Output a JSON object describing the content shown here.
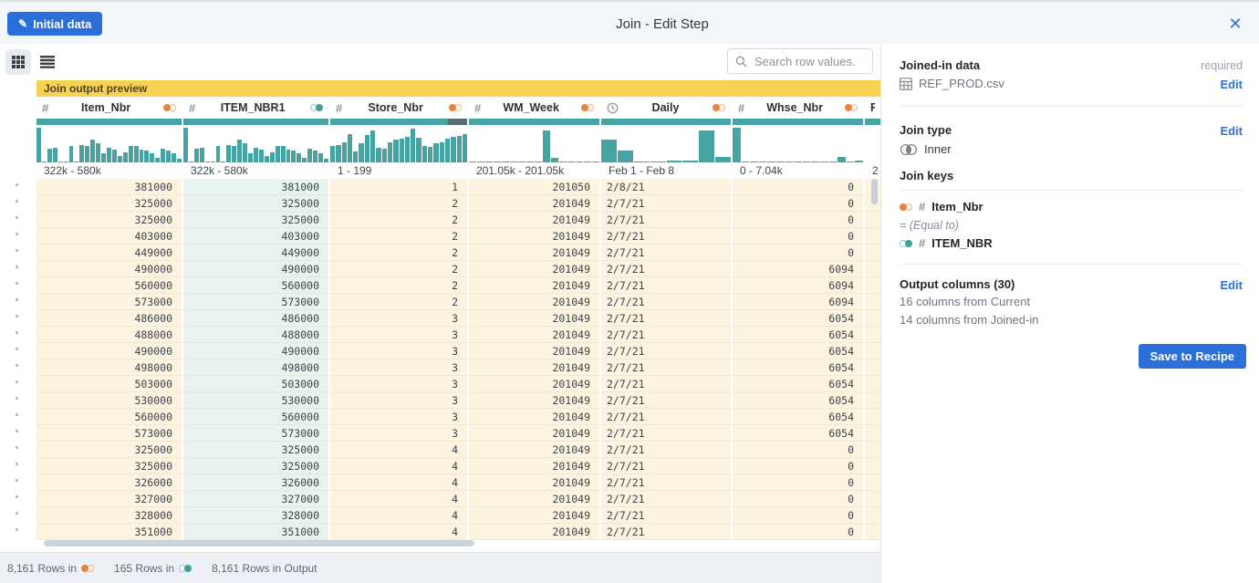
{
  "colors": {
    "accent_blue": "#2b6fdb",
    "teal": "#46a5a2",
    "orange": "#e8823c",
    "yellow_banner": "#f6d152",
    "quality_missing_gray": "#5d6b77"
  },
  "header": {
    "initial_data_button": "Initial data",
    "title": "Join - Edit Step",
    "icons": {
      "pencil": "✎",
      "close": "✕"
    }
  },
  "toolbar": {
    "search_placeholder": "Search row values."
  },
  "preview": {
    "banner_label": "Join output preview",
    "columns": [
      {
        "name": "Item_Nbr",
        "type": "numeric",
        "key_side": "current",
        "range": "322k - 580k",
        "quality": [
          {
            "color": "teal",
            "pct": 100
          }
        ],
        "hist": [
          95,
          3,
          38,
          40,
          2,
          2,
          44,
          2,
          48,
          46,
          62,
          52,
          26,
          40,
          36,
          18,
          28,
          46,
          44,
          36,
          33,
          24,
          13,
          38,
          33,
          26,
          10
        ]
      },
      {
        "name": "ITEM_NBR1",
        "type": "numeric",
        "key_side": "joined",
        "range": "322k - 580k",
        "quality": [
          {
            "color": "teal",
            "pct": 100
          }
        ],
        "hist": [
          95,
          3,
          38,
          40,
          2,
          2,
          44,
          2,
          48,
          46,
          62,
          52,
          26,
          40,
          36,
          18,
          28,
          46,
          44,
          36,
          33,
          24,
          13,
          38,
          33,
          26,
          10
        ]
      },
      {
        "name": "Store_Nbr",
        "type": "numeric",
        "key_side": "current",
        "range": "1 - 199",
        "quality": [
          {
            "color": "teal",
            "pct": 86
          },
          {
            "color": "gray",
            "pct": 14
          }
        ],
        "hist": [
          45,
          48,
          55,
          78,
          30,
          52,
          75,
          88,
          40,
          38,
          55,
          62,
          65,
          70,
          92,
          68,
          46,
          42,
          52,
          55,
          65,
          70,
          72,
          78
        ]
      },
      {
        "name": "WM_Week",
        "type": "numeric",
        "key_side": "current",
        "range": "201.05k - 201.05k",
        "quality": [
          {
            "color": "teal",
            "pct": 100
          }
        ],
        "hist": [
          1,
          1,
          1,
          1,
          1,
          1,
          1,
          1,
          1,
          88,
          12,
          1,
          1,
          1,
          1,
          1
        ]
      },
      {
        "name": "Daily",
        "type": "datetime",
        "key_side": "current",
        "range": "Feb 1 - Feb 8",
        "quality": [
          {
            "color": "teal",
            "pct": 100
          }
        ],
        "hist": [
          62,
          33,
          2,
          2,
          6,
          6,
          88,
          15
        ]
      },
      {
        "name": "Whse_Nbr",
        "type": "numeric",
        "key_side": "current",
        "range": "0 - 7.04k",
        "quality": [
          {
            "color": "teal",
            "pct": 100
          }
        ],
        "hist": [
          95,
          2,
          2,
          2,
          2,
          2,
          2,
          2,
          2,
          2,
          2,
          2,
          14,
          2,
          5
        ]
      },
      {
        "name": "R",
        "type": "partial",
        "range": "2",
        "quality": [
          {
            "color": "teal",
            "pct": 100
          }
        ],
        "hist": [],
        "partial": true
      }
    ],
    "rows": [
      [
        "381000",
        "381000",
        "1",
        "201050",
        "2/8/21",
        "0"
      ],
      [
        "325000",
        "325000",
        "2",
        "201049",
        "2/7/21",
        "0"
      ],
      [
        "325000",
        "325000",
        "2",
        "201049",
        "2/7/21",
        "0"
      ],
      [
        "403000",
        "403000",
        "2",
        "201049",
        "2/7/21",
        "0"
      ],
      [
        "449000",
        "449000",
        "2",
        "201049",
        "2/7/21",
        "0"
      ],
      [
        "490000",
        "490000",
        "2",
        "201049",
        "2/7/21",
        "6094"
      ],
      [
        "560000",
        "560000",
        "2",
        "201049",
        "2/7/21",
        "6094"
      ],
      [
        "573000",
        "573000",
        "2",
        "201049",
        "2/7/21",
        "6094"
      ],
      [
        "486000",
        "486000",
        "3",
        "201049",
        "2/7/21",
        "6054"
      ],
      [
        "488000",
        "488000",
        "3",
        "201049",
        "2/7/21",
        "6054"
      ],
      [
        "490000",
        "490000",
        "3",
        "201049",
        "2/7/21",
        "6054"
      ],
      [
        "498000",
        "498000",
        "3",
        "201049",
        "2/7/21",
        "6054"
      ],
      [
        "503000",
        "503000",
        "3",
        "201049",
        "2/7/21",
        "6054"
      ],
      [
        "530000",
        "530000",
        "3",
        "201049",
        "2/7/21",
        "6054"
      ],
      [
        "560000",
        "560000",
        "3",
        "201049",
        "2/7/21",
        "6054"
      ],
      [
        "573000",
        "573000",
        "3",
        "201049",
        "2/7/21",
        "6054"
      ],
      [
        "325000",
        "325000",
        "4",
        "201049",
        "2/7/21",
        "0"
      ],
      [
        "325000",
        "325000",
        "4",
        "201049",
        "2/7/21",
        "0"
      ],
      [
        "326000",
        "326000",
        "4",
        "201049",
        "2/7/21",
        "0"
      ],
      [
        "327000",
        "327000",
        "4",
        "201049",
        "2/7/21",
        "0"
      ],
      [
        "328000",
        "328000",
        "4",
        "201049",
        "2/7/21",
        "0"
      ],
      [
        "351000",
        "351000",
        "4",
        "201049",
        "2/7/21",
        "0"
      ]
    ]
  },
  "panel": {
    "joined_in": {
      "title": "Joined-in data",
      "required_label": "required",
      "dataset": "REF_PROD.csv",
      "edit_label": "Edit"
    },
    "join_type": {
      "title": "Join type",
      "value": "Inner",
      "edit_label": "Edit"
    },
    "join_keys": {
      "title": "Join keys",
      "left_column": "Item_Nbr",
      "operator": "= (Equal to)",
      "right_column": "ITEM_NBR"
    },
    "output_columns": {
      "title": "Output columns (30)",
      "edit_label": "Edit",
      "lines": [
        "16 columns from Current",
        "14 columns from Joined-in"
      ]
    },
    "save_button": "Save to Recipe"
  },
  "status_bar": {
    "items": [
      {
        "label": "8,161 Rows in",
        "key_side": "current"
      },
      {
        "label": "165 Rows in",
        "key_side": "joined"
      },
      {
        "label": "8,161 Rows in Output"
      }
    ]
  }
}
